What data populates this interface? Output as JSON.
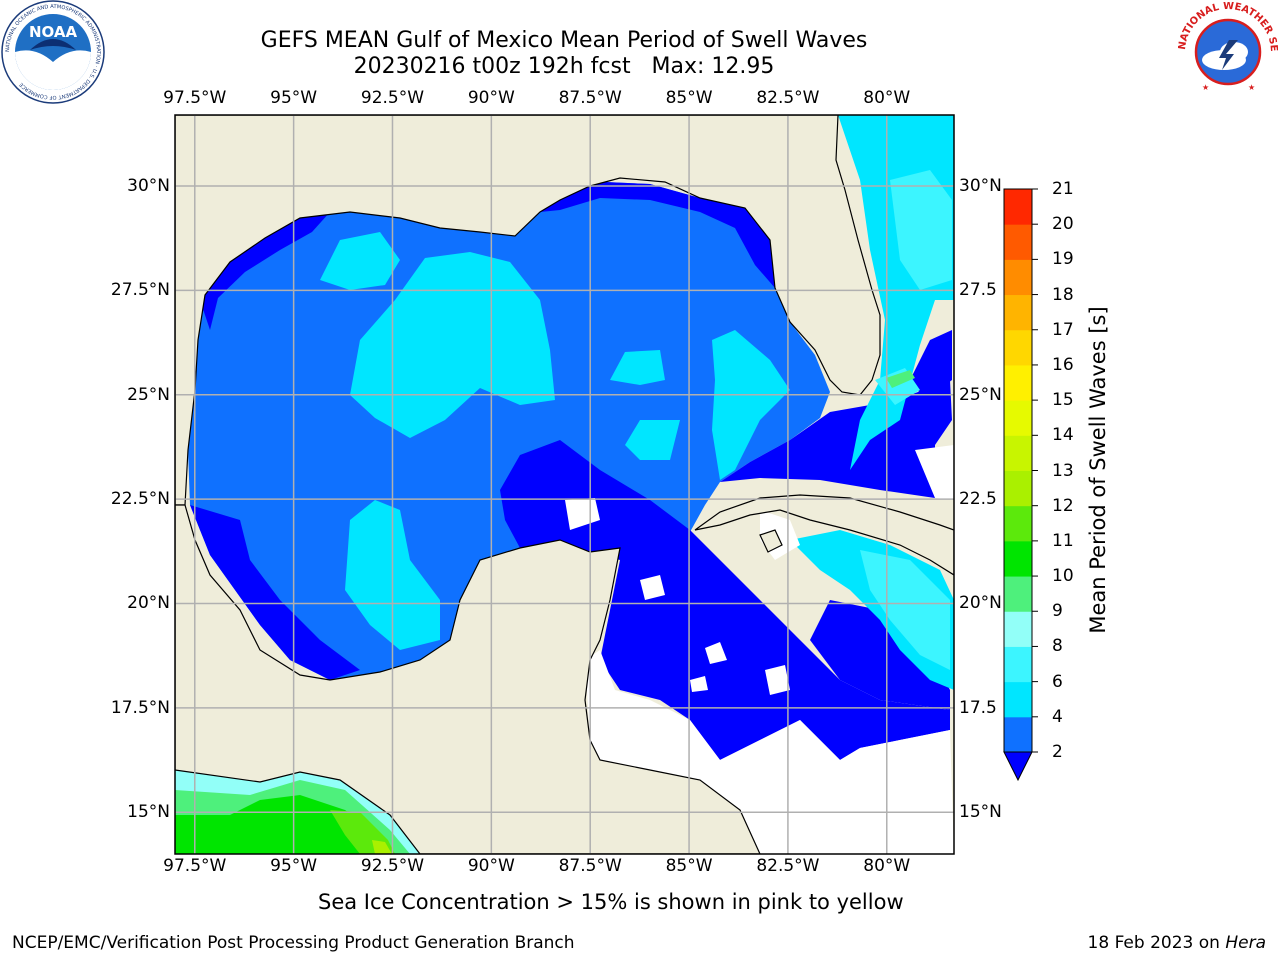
{
  "title": {
    "line1": "GEFS MEAN Gulf of Mexico Mean Period of Swell Waves",
    "line2": "20230216 t00z 192h fcst   Max: 12.95"
  },
  "map": {
    "lon_ticks": [
      {
        "lon": -97.5,
        "label": "97.5°W"
      },
      {
        "lon": -95,
        "label": "95°W"
      },
      {
        "lon": -92.5,
        "label": "92.5°W"
      },
      {
        "lon": -90,
        "label": "90°W"
      },
      {
        "lon": -87.5,
        "label": "87.5°W"
      },
      {
        "lon": -85,
        "label": "85°W"
      },
      {
        "lon": -82.5,
        "label": "82.5°W"
      },
      {
        "lon": -80,
        "label": "80°W"
      }
    ],
    "lat_ticks_left": [
      {
        "lat": 30,
        "label": "30°N"
      },
      {
        "lat": 27.5,
        "label": "27.5°N"
      },
      {
        "lat": 25,
        "label": "25°N"
      },
      {
        "lat": 22.5,
        "label": "22.5°N"
      },
      {
        "lat": 20,
        "label": "20°N"
      },
      {
        "lat": 17.5,
        "label": "17.5°N"
      },
      {
        "lat": 15,
        "label": "15°N"
      }
    ],
    "lat_ticks_right": [
      {
        "lat": 30,
        "label": "30°N"
      },
      {
        "lat": 27.5,
        "label": "27.5"
      },
      {
        "lat": 25,
        "label": "25°N"
      },
      {
        "lat": 22.5,
        "label": "22.5"
      },
      {
        "lat": 20,
        "label": "20°N"
      },
      {
        "lat": 17.5,
        "label": "17.5"
      },
      {
        "lat": 15,
        "label": "15°N"
      }
    ],
    "extent": {
      "lon_min": -98,
      "lon_max": -78.3,
      "lat_min": 14,
      "lat_max": 31.7
    },
    "colors": {
      "land": "#efedda",
      "no_data": "#ffffff",
      "gridlines": "#b0b0b0"
    }
  },
  "colorbar": {
    "label": "Mean Period of Swell Waves [s]",
    "levels": [
      2,
      4,
      6,
      8,
      9,
      10,
      11,
      12,
      13,
      14,
      15,
      16,
      17,
      18,
      19,
      20,
      21
    ],
    "colors": [
      "#0f71ff",
      "#00e6ff",
      "#3cf5ff",
      "#92fff8",
      "#4ef07c",
      "#00e500",
      "#5ce90c",
      "#aaf000",
      "#c8f500",
      "#e6fa00",
      "#fff000",
      "#ffd700",
      "#ffb400",
      "#ff8c00",
      "#ff5a00",
      "#ff2800"
    ],
    "under_color": "#0000ff",
    "tick_labels": [
      "21",
      "20",
      "19",
      "18",
      "17",
      "16",
      "15",
      "14",
      "13",
      "12",
      "11",
      "10",
      "9",
      "8",
      "6",
      "4",
      "2"
    ]
  },
  "caption": "Sea Ice Concentration > 15% is shown in pink to yellow",
  "footer": {
    "left": "NCEP/EMC/Verification Post Processing Product Generation Branch",
    "right_date": "18 Feb 2023 on ",
    "right_host": "Hera"
  },
  "logos": {
    "noaa_text": "NOAA",
    "noaa_ring": "NATIONAL OCEANIC AND ATMOSPHERIC ADMINISTRATION · U.S. DEPARTMENT OF COMMERCE",
    "nws_ring": "NATIONAL WEATHER SERVICE"
  }
}
